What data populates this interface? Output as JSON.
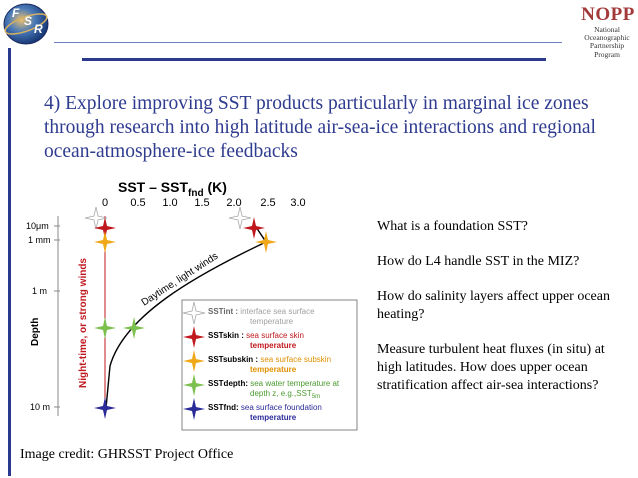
{
  "logo_left": {
    "letters": [
      "F",
      "S",
      "R"
    ]
  },
  "logo_right": {
    "title": "NOPP",
    "lines": [
      "National",
      "Oceanographic",
      "Partnership",
      "Program"
    ]
  },
  "heading": "4) Explore improving SST products particularly in marginal ice zones through research into high latitude air-sea-ice interactions and regional ocean-atmosphere-ice feedbacks",
  "figure": {
    "title_main": "SST – SST",
    "title_sub": "fnd",
    "title_unit": " (K)",
    "x_ticks": [
      "0",
      "0.5",
      "1.0",
      "1.5",
      "2.0",
      "2.5",
      "3.0"
    ],
    "depth_ticks": [
      "10μm",
      "1 mm",
      "1 m",
      "10 m"
    ],
    "ylabel": "Depth",
    "night_label": "Night-time, or strong winds",
    "day_label": "Daytime, light winds",
    "legend": [
      {
        "bold": "SSTint :",
        "rest": " interface sea surface",
        "line2": "temperature",
        "color": "#c8c8c8",
        "textcolor": "#a0a0a0"
      },
      {
        "bold": "SSTskin :",
        "rest": " sea surface skin",
        "line2": "temperature",
        "color": "#c0181e",
        "textcolor": "#c0181e"
      },
      {
        "bold": "SSTsubskin :",
        "rest": " sea surface subskin",
        "line2": "temperature",
        "color": "#f0a818",
        "textcolor": "#e09000"
      },
      {
        "bold": "SSTdepth:",
        "rest": " sea water temperature at",
        "line2": "depth z, e.g.,SST",
        "line2sub": "5m",
        "color": "#7cc050",
        "textcolor": "#4a9a30"
      },
      {
        "bold": "SSTfnd:",
        "rest": " sea surface foundation",
        "line2": "temperature",
        "color": "#2b2b9a",
        "textcolor": "#2b2b9a"
      }
    ]
  },
  "side_text": [
    "What is a foundation SST?",
    "How do L4 handle SST in the MIZ?",
    "How do salinity layers affect upper ocean heating?",
    "Measure turbulent heat fluxes (in situ) at high latitudes.  How does upper ocean stratification affect air-sea interactions?"
  ],
  "credit": "Image credit: GHRSST Project Office",
  "colors": {
    "heading": "#2e3b8f",
    "rule": "#2b3a8f",
    "night": "#c0181e"
  }
}
